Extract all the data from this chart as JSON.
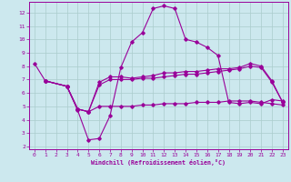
{
  "xlabel": "Windchill (Refroidissement éolien,°C)",
  "bg_color": "#cce8ee",
  "line_color": "#990099",
  "grid_color": "#aacccc",
  "xlim": [
    -0.5,
    23.5
  ],
  "ylim": [
    1.8,
    12.8
  ],
  "xticks": [
    0,
    1,
    2,
    3,
    4,
    5,
    6,
    7,
    8,
    9,
    10,
    11,
    12,
    13,
    14,
    15,
    16,
    17,
    18,
    19,
    20,
    21,
    22,
    23
  ],
  "yticks": [
    2,
    3,
    4,
    5,
    6,
    7,
    8,
    9,
    10,
    11,
    12
  ],
  "line1_x": [
    0,
    1,
    3,
    4,
    5,
    6,
    7,
    8,
    9,
    10,
    11,
    12,
    13,
    14,
    15,
    16,
    17,
    18,
    19,
    20,
    21,
    22,
    23
  ],
  "line1_y": [
    8.2,
    6.9,
    6.5,
    4.7,
    2.5,
    2.6,
    4.3,
    7.9,
    9.8,
    10.5,
    12.3,
    12.5,
    12.3,
    10.0,
    9.8,
    9.4,
    8.8,
    5.3,
    5.2,
    5.3,
    5.2,
    5.5,
    5.4
  ],
  "line2_x": [
    1,
    3,
    4,
    5,
    6,
    7,
    8,
    9,
    10,
    11,
    12,
    13,
    14,
    15,
    16,
    17,
    18,
    19,
    20,
    21,
    22,
    23
  ],
  "line2_y": [
    6.9,
    6.5,
    4.8,
    4.6,
    6.8,
    7.2,
    7.2,
    7.1,
    7.2,
    7.3,
    7.5,
    7.5,
    7.6,
    7.6,
    7.7,
    7.8,
    7.8,
    7.9,
    8.2,
    8.0,
    6.9,
    5.3
  ],
  "line3_x": [
    1,
    3,
    4,
    5,
    6,
    7,
    8,
    9,
    10,
    11,
    12,
    13,
    14,
    15,
    16,
    17,
    18,
    19,
    20,
    21,
    22,
    23
  ],
  "line3_y": [
    6.9,
    6.5,
    4.8,
    4.6,
    6.6,
    7.0,
    7.0,
    7.0,
    7.1,
    7.1,
    7.2,
    7.3,
    7.4,
    7.4,
    7.5,
    7.6,
    7.7,
    7.8,
    8.0,
    7.9,
    6.8,
    5.3
  ],
  "line4_x": [
    1,
    3,
    4,
    5,
    6,
    7,
    8,
    9,
    10,
    11,
    12,
    13,
    14,
    15,
    16,
    17,
    18,
    19,
    20,
    21,
    22,
    23
  ],
  "line4_y": [
    6.9,
    6.5,
    4.8,
    4.6,
    5.0,
    5.0,
    5.0,
    5.0,
    5.1,
    5.1,
    5.2,
    5.2,
    5.2,
    5.3,
    5.3,
    5.3,
    5.4,
    5.4,
    5.4,
    5.3,
    5.2,
    5.1
  ]
}
